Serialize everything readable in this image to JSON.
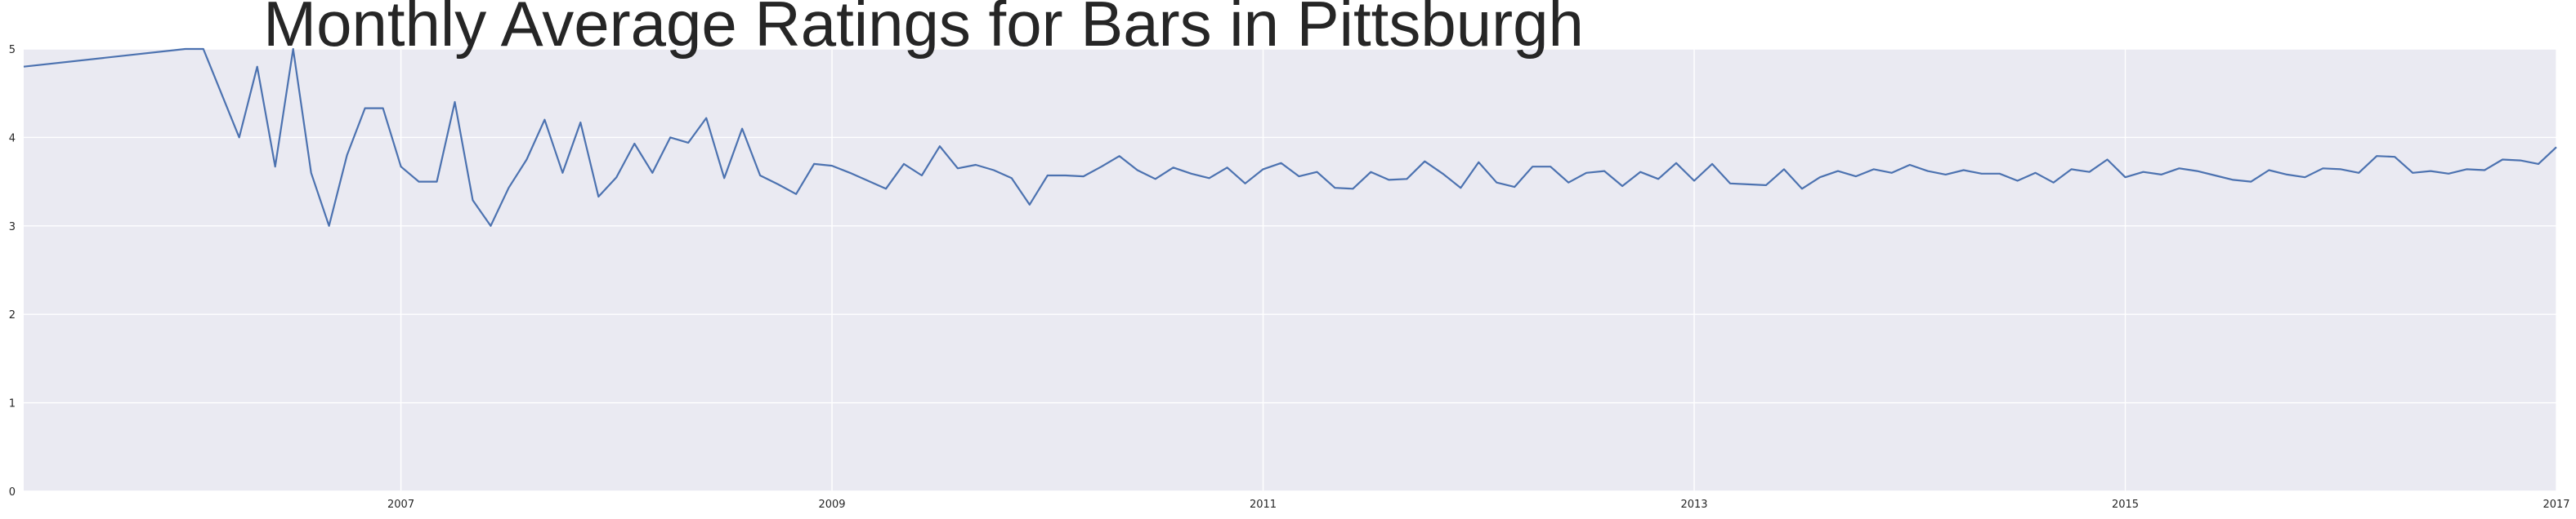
{
  "chart_data": {
    "type": "line",
    "title": "Monthly Average Ratings for Bars in Pittsburgh",
    "xlabel": "",
    "ylabel": "",
    "xlim": [
      "2005-04",
      "2017-01"
    ],
    "ylim": [
      0,
      5
    ],
    "x_ticks": [
      "2007",
      "2009",
      "2011",
      "2013",
      "2015",
      "2017"
    ],
    "y_ticks": [
      "0",
      "1",
      "2",
      "3",
      "4",
      "5"
    ],
    "grid": true,
    "background_color": "#eaeaf2",
    "grid_color": "#ffffff",
    "line_color": "#4c72b0",
    "series": [
      {
        "x": [
          "2005-04",
          "2006-01",
          "2006-02",
          "2006-04",
          "2006-05",
          "2006-06",
          "2006-07",
          "2006-08",
          "2006-09",
          "2006-10",
          "2006-11",
          "2006-12",
          "2007-01",
          "2007-02",
          "2007-03",
          "2007-04",
          "2007-05",
          "2007-06",
          "2007-07",
          "2007-08",
          "2007-09",
          "2007-10",
          "2007-11",
          "2007-12",
          "2008-01",
          "2008-02",
          "2008-03",
          "2008-04",
          "2008-05",
          "2008-06",
          "2008-07",
          "2008-08",
          "2008-09",
          "2008-10",
          "2008-11",
          "2008-12",
          "2009-01",
          "2009-02",
          "2009-03",
          "2009-04",
          "2009-05",
          "2009-06",
          "2009-07",
          "2009-08",
          "2009-09",
          "2009-10",
          "2009-11",
          "2009-12",
          "2010-01",
          "2010-02",
          "2010-03",
          "2010-04",
          "2010-05",
          "2010-06",
          "2010-07",
          "2010-08",
          "2010-09",
          "2010-10",
          "2010-11",
          "2010-12",
          "2011-01",
          "2011-02",
          "2011-03",
          "2011-04",
          "2011-05",
          "2011-06",
          "2011-07",
          "2011-08",
          "2011-09",
          "2011-10",
          "2011-11",
          "2011-12",
          "2012-01",
          "2012-02",
          "2012-03",
          "2012-04",
          "2012-05",
          "2012-06",
          "2012-07",
          "2012-08",
          "2012-09",
          "2012-10",
          "2012-11",
          "2012-12",
          "2013-01",
          "2013-02",
          "2013-03",
          "2013-04",
          "2013-05",
          "2013-06",
          "2013-07",
          "2013-08",
          "2013-09",
          "2013-10",
          "2013-11",
          "2013-12",
          "2014-01",
          "2014-02",
          "2014-03",
          "2014-04",
          "2014-05",
          "2014-06",
          "2014-07",
          "2014-08",
          "2014-09",
          "2014-10",
          "2014-11",
          "2014-12",
          "2015-01",
          "2015-02",
          "2015-03",
          "2015-04",
          "2015-05",
          "2015-06",
          "2015-07",
          "2015-08",
          "2015-09",
          "2015-10",
          "2015-11",
          "2015-12",
          "2016-01",
          "2016-02",
          "2016-03",
          "2016-04",
          "2016-05",
          "2016-06",
          "2016-07",
          "2016-08",
          "2016-09",
          "2016-10",
          "2016-11",
          "2016-12",
          "2017-01"
        ],
        "y": [
          4.8,
          5.0,
          5.0,
          4.0,
          4.8,
          3.67,
          5.0,
          3.6,
          3.0,
          3.8,
          4.33,
          4.33,
          3.67,
          3.5,
          3.5,
          4.4,
          3.29,
          3.0,
          3.43,
          3.75,
          4.2,
          3.6,
          4.17,
          3.33,
          3.55,
          3.93,
          3.6,
          4.0,
          3.94,
          4.22,
          3.54,
          4.1,
          3.57,
          3.47,
          3.36,
          3.7,
          3.68,
          3.6,
          3.51,
          3.42,
          3.7,
          3.57,
          3.9,
          3.65,
          3.69,
          3.63,
          3.54,
          3.24,
          3.57,
          3.57,
          3.56,
          3.67,
          3.79,
          3.63,
          3.53,
          3.66,
          3.59,
          3.54,
          3.66,
          3.48,
          3.64,
          3.71,
          3.56,
          3.61,
          3.43,
          3.42,
          3.61,
          3.52,
          3.53,
          3.73,
          3.59,
          3.43,
          3.72,
          3.49,
          3.44,
          3.67,
          3.67,
          3.49,
          3.6,
          3.62,
          3.45,
          3.61,
          3.53,
          3.71,
          3.51,
          3.7,
          3.48,
          3.47,
          3.46,
          3.64,
          3.42,
          3.55,
          3.62,
          3.56,
          3.64,
          3.6,
          3.69,
          3.62,
          3.58,
          3.63,
          3.59,
          3.59,
          3.51,
          3.6,
          3.49,
          3.64,
          3.61,
          3.75,
          3.55,
          3.61,
          3.58,
          3.65,
          3.62,
          3.57,
          3.52,
          3.5,
          3.63,
          3.58,
          3.55,
          3.65,
          3.64,
          3.6,
          3.79,
          3.78,
          3.6,
          3.62,
          3.59,
          3.64,
          3.63,
          3.75,
          3.74,
          3.7,
          3.89
        ]
      }
    ]
  }
}
